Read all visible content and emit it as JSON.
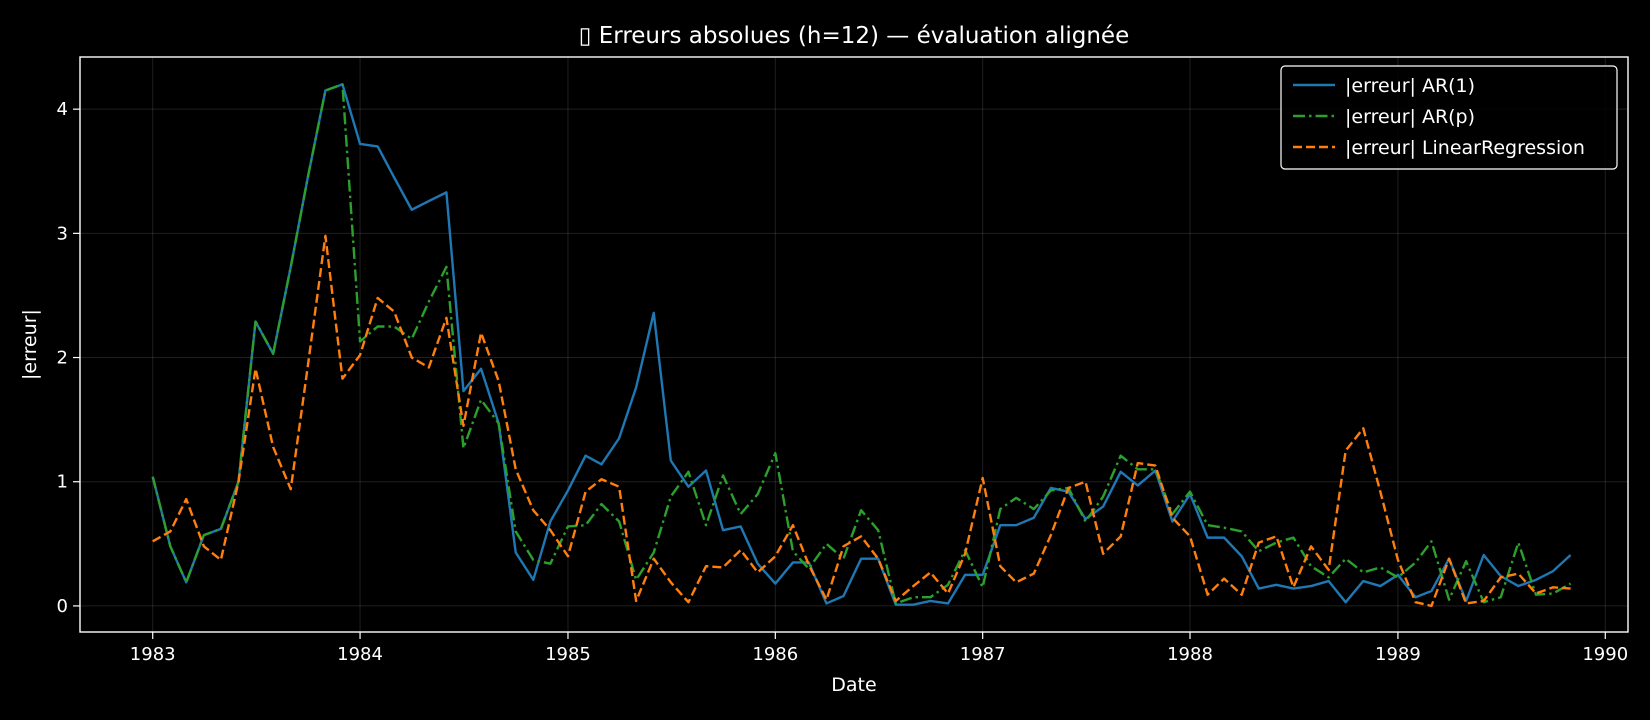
{
  "chart_data": {
    "type": "line",
    "title": "▯ Erreurs absolues (h=12) — évaluation alignée",
    "xlabel": "Date",
    "ylabel": "|erreur|",
    "x_axis_type": "date",
    "x": [
      "1983-01",
      "1983-02",
      "1983-03",
      "1983-04",
      "1983-05",
      "1983-06",
      "1983-07",
      "1983-08",
      "1983-09",
      "1983-10",
      "1983-11",
      "1983-12",
      "1984-01",
      "1984-02",
      "1984-03",
      "1984-04",
      "1984-05",
      "1984-06",
      "1984-07",
      "1984-08",
      "1984-09",
      "1984-10",
      "1984-11",
      "1984-12",
      "1985-01",
      "1985-02",
      "1985-03",
      "1985-04",
      "1985-05",
      "1985-06",
      "1985-07",
      "1985-08",
      "1985-09",
      "1985-10",
      "1985-11",
      "1985-12",
      "1986-01",
      "1986-02",
      "1986-03",
      "1986-04",
      "1986-05",
      "1986-06",
      "1986-07",
      "1986-08",
      "1986-09",
      "1986-10",
      "1986-11",
      "1986-12",
      "1987-01",
      "1987-02",
      "1987-03",
      "1987-04",
      "1987-05",
      "1987-06",
      "1987-07",
      "1987-08",
      "1987-09",
      "1987-10",
      "1987-11",
      "1987-12",
      "1988-01",
      "1988-02",
      "1988-03",
      "1988-04",
      "1988-05",
      "1988-06",
      "1988-07",
      "1988-08",
      "1988-09",
      "1988-10",
      "1988-11",
      "1988-12",
      "1989-01",
      "1989-02",
      "1989-03",
      "1989-04",
      "1989-05",
      "1989-06",
      "1989-07",
      "1989-08",
      "1989-09",
      "1989-10",
      "1989-11"
    ],
    "xlim": [
      "1982-08-26",
      "1990-02-10"
    ],
    "ylim": [
      -0.21,
      4.42
    ],
    "x_ticks": [
      {
        "date": "1983-01",
        "label": "1983"
      },
      {
        "date": "1984-01",
        "label": "1984"
      },
      {
        "date": "1985-01",
        "label": "1985"
      },
      {
        "date": "1986-01",
        "label": "1986"
      },
      {
        "date": "1987-01",
        "label": "1987"
      },
      {
        "date": "1988-01",
        "label": "1988"
      },
      {
        "date": "1989-01",
        "label": "1989"
      },
      {
        "date": "1990-01",
        "label": "1990"
      }
    ],
    "y_ticks": [
      0,
      1,
      2,
      3,
      4
    ],
    "grid": true,
    "legend_position": "upper right",
    "series": [
      {
        "name": "|erreur| AR(1)",
        "color": "#1f77b4",
        "style": "solid",
        "values": [
          1.04,
          0.48,
          0.19,
          0.57,
          0.62,
          1.0,
          2.29,
          2.03,
          2.73,
          3.45,
          4.15,
          4.2,
          3.72,
          3.7,
          3.45,
          3.19,
          3.26,
          3.33,
          1.73,
          1.91,
          1.47,
          0.43,
          0.21,
          0.68,
          0.93,
          1.21,
          1.14,
          1.35,
          1.76,
          2.36,
          1.17,
          0.96,
          1.09,
          0.61,
          0.64,
          0.34,
          0.18,
          0.35,
          0.35,
          0.02,
          0.08,
          0.38,
          0.38,
          0.01,
          0.01,
          0.04,
          0.02,
          0.25,
          0.25,
          0.65,
          0.65,
          0.71,
          0.95,
          0.92,
          0.7,
          0.8,
          1.08,
          0.97,
          1.09,
          0.68,
          0.9,
          0.55,
          0.55,
          0.4,
          0.14,
          0.17,
          0.14,
          0.16,
          0.2,
          0.03,
          0.2,
          0.16,
          0.25,
          0.07,
          0.12,
          0.38,
          0.04,
          0.41,
          0.24,
          0.16,
          0.21,
          0.28,
          0.41
        ]
      },
      {
        "name": "|erreur| AR(p)",
        "color": "#2ca02c",
        "style": "dashdot",
        "values": [
          1.04,
          0.48,
          0.19,
          0.57,
          0.62,
          1.0,
          2.29,
          2.03,
          2.73,
          3.45,
          4.15,
          4.2,
          2.13,
          2.25,
          2.25,
          2.15,
          2.45,
          2.73,
          1.27,
          1.66,
          1.47,
          0.6,
          0.37,
          0.34,
          0.64,
          0.65,
          0.82,
          0.68,
          0.21,
          0.43,
          0.88,
          1.08,
          0.65,
          1.05,
          0.74,
          0.9,
          1.23,
          0.44,
          0.3,
          0.5,
          0.38,
          0.77,
          0.61,
          0.02,
          0.07,
          0.07,
          0.17,
          0.45,
          0.15,
          0.78,
          0.87,
          0.78,
          0.93,
          0.95,
          0.68,
          0.88,
          1.21,
          1.1,
          1.1,
          0.74,
          0.92,
          0.65,
          0.63,
          0.6,
          0.44,
          0.51,
          0.55,
          0.32,
          0.23,
          0.38,
          0.27,
          0.31,
          0.23,
          0.35,
          0.52,
          0.05,
          0.36,
          0.03,
          0.07,
          0.51,
          0.09,
          0.1,
          0.18
        ]
      },
      {
        "name": "|erreur| LinearRegression",
        "color": "#ff7f0e",
        "style": "dashed",
        "values": [
          0.52,
          0.6,
          0.86,
          0.48,
          0.37,
          1.0,
          1.91,
          1.28,
          0.94,
          1.93,
          2.98,
          1.83,
          2.02,
          2.48,
          2.37,
          2.0,
          1.92,
          2.32,
          1.45,
          2.2,
          1.81,
          1.1,
          0.77,
          0.61,
          0.4,
          0.92,
          1.02,
          0.96,
          0.04,
          0.38,
          0.19,
          0.03,
          0.32,
          0.31,
          0.45,
          0.27,
          0.4,
          0.65,
          0.33,
          0.05,
          0.48,
          0.56,
          0.38,
          0.04,
          0.16,
          0.27,
          0.1,
          0.42,
          1.03,
          0.32,
          0.19,
          0.26,
          0.57,
          0.95,
          1.0,
          0.42,
          0.56,
          1.15,
          1.13,
          0.71,
          0.56,
          0.09,
          0.22,
          0.09,
          0.51,
          0.56,
          0.15,
          0.48,
          0.29,
          1.25,
          1.43,
          0.92,
          0.37,
          0.03,
          0.0,
          0.38,
          0.02,
          0.04,
          0.23,
          0.26,
          0.1,
          0.15,
          0.14
        ]
      }
    ]
  }
}
